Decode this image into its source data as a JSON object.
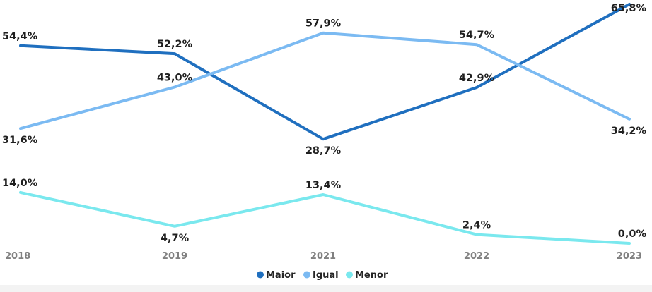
{
  "chart_data": {
    "type": "line",
    "categories": [
      "2018",
      "2019",
      "2021",
      "2022",
      "2023"
    ],
    "series": [
      {
        "name": "Maior",
        "color": "#1f6fbf",
        "values": [
          54.4,
          52.2,
          28.7,
          42.9,
          65.8
        ],
        "labels": [
          "54,4%",
          "52,2%",
          "28,7%",
          "42,9%",
          "65,8%"
        ]
      },
      {
        "name": "Igual",
        "color": "#7bbaf2",
        "values": [
          31.6,
          43.0,
          57.9,
          54.7,
          34.2
        ],
        "labels": [
          "31,6%",
          "43,0%",
          "57,9%",
          "54,7%",
          "34,2%"
        ]
      },
      {
        "name": "Menor",
        "color": "#7ae8ee",
        "values": [
          14.0,
          4.7,
          13.4,
          2.4,
          0.0
        ],
        "labels": [
          "14,0%",
          "4,7%",
          "13,4%",
          "2,4%",
          "0,0%"
        ]
      }
    ],
    "legend_position": "bottom-center",
    "grid": false,
    "ylim": [
      0,
      66
    ],
    "title": "",
    "xlabel": "",
    "ylabel": ""
  }
}
